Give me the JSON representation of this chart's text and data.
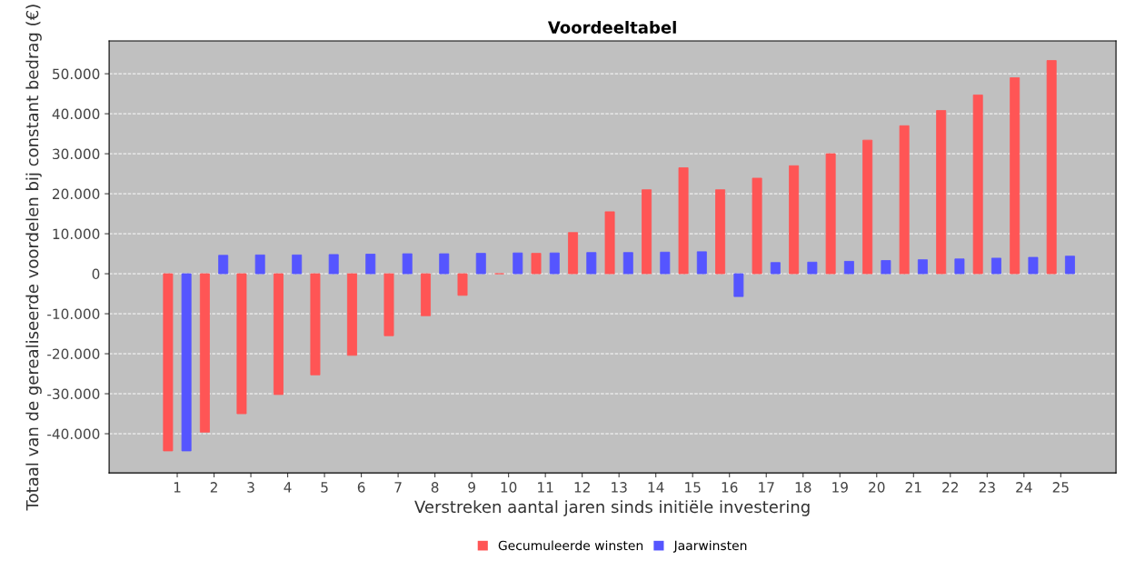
{
  "chart_data": {
    "type": "bar",
    "title": "Voordeeltabel",
    "xlabel": "Verstreken aantal jaren sinds initiële investering",
    "ylabel": "Totaal van de gerealiseerde voordelen bij constant bedrag (€)",
    "categories": [
      "1",
      "2",
      "3",
      "4",
      "5",
      "6",
      "7",
      "8",
      "9",
      "10",
      "11",
      "12",
      "13",
      "14",
      "15",
      "16",
      "17",
      "18",
      "19",
      "20",
      "21",
      "22",
      "23",
      "24",
      "25"
    ],
    "series": [
      {
        "name": "Gecumuleerde winsten",
        "color": "#ff5555",
        "values": [
          -44300,
          -39600,
          -35000,
          -30200,
          -25300,
          -20400,
          -15500,
          -10500,
          -5400,
          0,
          5100,
          10300,
          15500,
          21000,
          26500,
          21000,
          23900,
          27000,
          30000,
          33400,
          37000,
          40800,
          44700,
          49000,
          53300
        ]
      },
      {
        "name": "Jaarwinsten",
        "color": "#5555ff",
        "values": [
          -44300,
          4600,
          4700,
          4700,
          4800,
          4900,
          5000,
          5000,
          5100,
          5200,
          5200,
          5300,
          5300,
          5400,
          5500,
          -5700,
          2800,
          2900,
          3100,
          3300,
          3500,
          3700,
          3900,
          4100,
          4400
        ]
      }
    ],
    "ylim": [
      -49800,
      58200
    ],
    "yticks": [
      {
        "value": -40000,
        "label": "-40.000"
      },
      {
        "value": -30000,
        "label": "-30.000"
      },
      {
        "value": -20000,
        "label": "-20.000"
      },
      {
        "value": -10000,
        "label": "-10.000"
      },
      {
        "value": 0,
        "label": "0"
      },
      {
        "value": 10000,
        "label": "10.000"
      },
      {
        "value": 20000,
        "label": "20.000"
      },
      {
        "value": 30000,
        "label": "30.000"
      },
      {
        "value": 40000,
        "label": "40.000"
      },
      {
        "value": 50000,
        "label": "50.000"
      }
    ],
    "grid": "y",
    "legend": "bottom"
  }
}
